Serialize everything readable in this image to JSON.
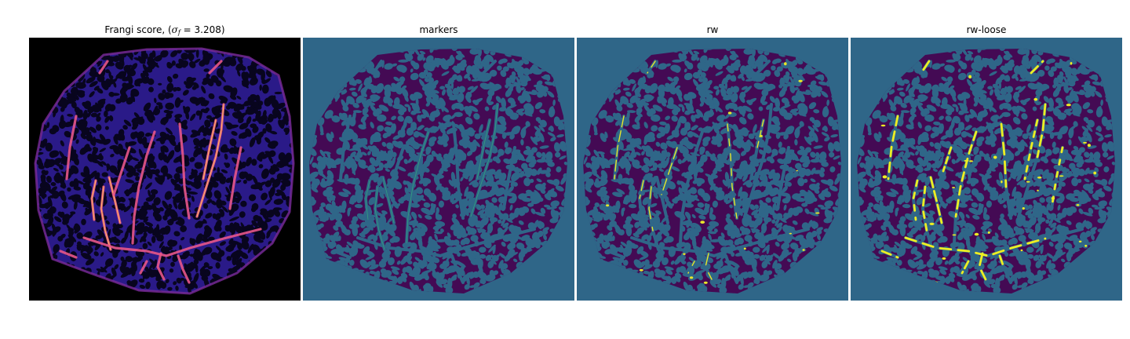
{
  "figure": {
    "panels": [
      {
        "id": "frangi",
        "title_prefix": "Frangi score, (",
        "title_sigma": "σ",
        "title_sub": "f",
        "title_suffix": " = 3.208)",
        "colormap": "magma",
        "background": "#000000",
        "blob": "#2a1a88",
        "tissue_gap": "#08051e",
        "vessel": "#e8568a",
        "vessel_hot": "#fbb060"
      },
      {
        "id": "markers",
        "title": "markers",
        "colormap": "viridis",
        "background": "#2f6688",
        "blob": "#440a54",
        "marker_light": "#35b779"
      },
      {
        "id": "rw",
        "title": "rw",
        "colormap": "viridis",
        "background": "#2f6688",
        "blob": "#440a54",
        "highlight": "#e8e62a"
      },
      {
        "id": "rw-loose",
        "title": "rw-loose",
        "colormap": "viridis",
        "background": "#2f6688",
        "blob": "#440a54",
        "highlight": "#eeee22"
      }
    ]
  }
}
